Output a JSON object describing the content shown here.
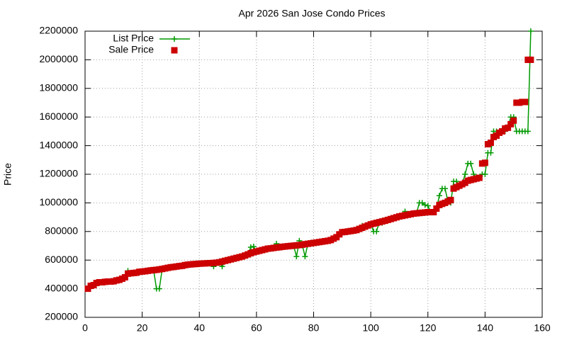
{
  "chart_data": {
    "type": "line",
    "title": "Apr 2026 San Jose Condo Prices",
    "y_label": "Price",
    "x": [
      1,
      2,
      3,
      4,
      5,
      6,
      7,
      8,
      9,
      10,
      11,
      12,
      13,
      14,
      15,
      16,
      17,
      18,
      19,
      20,
      21,
      22,
      23,
      24,
      25,
      26,
      27,
      28,
      29,
      30,
      31,
      32,
      33,
      34,
      35,
      36,
      37,
      38,
      39,
      40,
      41,
      42,
      43,
      44,
      45,
      46,
      47,
      48,
      49,
      50,
      51,
      52,
      53,
      54,
      55,
      56,
      57,
      58,
      59,
      60,
      61,
      62,
      63,
      64,
      65,
      66,
      67,
      68,
      69,
      70,
      71,
      72,
      73,
      74,
      75,
      76,
      77,
      78,
      79,
      80,
      81,
      82,
      83,
      84,
      85,
      86,
      87,
      88,
      89,
      90,
      91,
      92,
      93,
      94,
      95,
      96,
      97,
      98,
      99,
      100,
      101,
      102,
      103,
      104,
      105,
      106,
      107,
      108,
      109,
      110,
      111,
      112,
      113,
      114,
      115,
      116,
      117,
      118,
      119,
      120,
      121,
      122,
      123,
      124,
      125,
      126,
      127,
      128,
      129,
      130,
      131,
      132,
      133,
      134,
      135,
      136,
      137,
      138,
      139,
      140,
      141,
      142,
      143,
      144,
      145,
      146,
      147,
      148,
      149,
      150,
      151,
      152,
      153,
      154,
      155,
      156
    ],
    "series": [
      {
        "name": "List Price",
        "color": "#009900",
        "style": "linespoints",
        "values": [
          400000,
          420000,
          425000,
          440000,
          445000,
          445000,
          448000,
          450000,
          450000,
          452000,
          458000,
          462000,
          470000,
          480000,
          525000,
          508000,
          510000,
          512000,
          518000,
          520000,
          522000,
          525000,
          528000,
          530000,
          400000,
          400000,
          538000,
          542000,
          546000,
          550000,
          552000,
          555000,
          558000,
          560000,
          565000,
          568000,
          570000,
          572000,
          573000,
          575000,
          576000,
          577000,
          578000,
          579000,
          555000,
          582000,
          585000,
          555000,
          595000,
          600000,
          605000,
          610000,
          615000,
          620000,
          625000,
          632000,
          640000,
          690000,
          695000,
          660000,
          665000,
          670000,
          675000,
          680000,
          682000,
          685000,
          715000,
          690000,
          693000,
          695000,
          697000,
          699000,
          701000,
          625000,
          735000,
          708000,
          625000,
          714000,
          717000,
          720000,
          723000,
          726000,
          729000,
          732000,
          735000,
          740000,
          750000,
          760000,
          780000,
          795000,
          797000,
          800000,
          803000,
          806000,
          810000,
          818000,
          840000,
          834000,
          842000,
          850000,
          800000,
          800000,
          865000,
          860000,
          875000,
          881000,
          887000,
          893000,
          899000,
          905000,
          909000,
          940000,
          917000,
          921000,
          925000,
          927000,
          1000000,
          1000000,
          985000,
          980000,
          935000,
          935000,
          960000,
          1050000,
          1100000,
          1100000,
          1010000,
          1000000,
          1150000,
          1150000,
          1120000,
          1130000,
          1200000,
          1275000,
          1275000,
          1200000,
          1175000,
          1175000,
          1200000,
          1200000,
          1350000,
          1350000,
          1500000,
          1500000,
          1490000,
          1500000,
          1500000,
          1525000,
          1600000,
          1600000,
          1500000,
          1500000,
          1500000,
          1500000,
          1500000,
          2200000
        ]
      },
      {
        "name": "Sale Price",
        "color": "#cc0000",
        "style": "points",
        "values": [
          400000,
          420000,
          425000,
          440000,
          445000,
          445000,
          448000,
          450000,
          450000,
          452000,
          458000,
          462000,
          470000,
          480000,
          505000,
          508000,
          510000,
          512000,
          518000,
          520000,
          522000,
          525000,
          528000,
          530000,
          532000,
          535000,
          538000,
          542000,
          546000,
          550000,
          552000,
          555000,
          558000,
          560000,
          565000,
          568000,
          570000,
          572000,
          573000,
          575000,
          576000,
          577000,
          578000,
          579000,
          580000,
          582000,
          585000,
          590000,
          595000,
          600000,
          605000,
          610000,
          615000,
          620000,
          625000,
          632000,
          640000,
          648000,
          655000,
          660000,
          665000,
          670000,
          675000,
          680000,
          682000,
          685000,
          688000,
          690000,
          693000,
          695000,
          697000,
          699000,
          701000,
          703000,
          705000,
          708000,
          711000,
          714000,
          717000,
          720000,
          723000,
          726000,
          729000,
          732000,
          735000,
          740000,
          750000,
          760000,
          780000,
          795000,
          797000,
          800000,
          803000,
          806000,
          810000,
          818000,
          826000,
          834000,
          842000,
          850000,
          855000,
          860000,
          865000,
          870000,
          875000,
          881000,
          887000,
          893000,
          899000,
          905000,
          909000,
          913000,
          917000,
          921000,
          925000,
          927000,
          929000,
          931000,
          933000,
          935000,
          935000,
          935000,
          960000,
          985000,
          993000,
          1000000,
          1010000,
          1020000,
          1100000,
          1110000,
          1120000,
          1130000,
          1140000,
          1155000,
          1160000,
          1165000,
          1170000,
          1175000,
          1275000,
          1280000,
          1410000,
          1420000,
          1460000,
          1470000,
          1490000,
          1500000,
          1520000,
          1525000,
          1550000,
          1575000,
          1700000,
          1700000,
          1705000,
          1705000,
          2000000,
          2000000
        ]
      }
    ],
    "xlim": [
      0,
      160
    ],
    "xticks": [
      0,
      20,
      40,
      60,
      80,
      100,
      120,
      140,
      160
    ],
    "ylim": [
      200000,
      2200000
    ],
    "yticks": [
      200000,
      400000,
      600000,
      800000,
      1000000,
      1200000,
      1400000,
      1600000,
      1800000,
      2000000,
      2200000
    ],
    "grid": true,
    "legend": "top-left"
  }
}
